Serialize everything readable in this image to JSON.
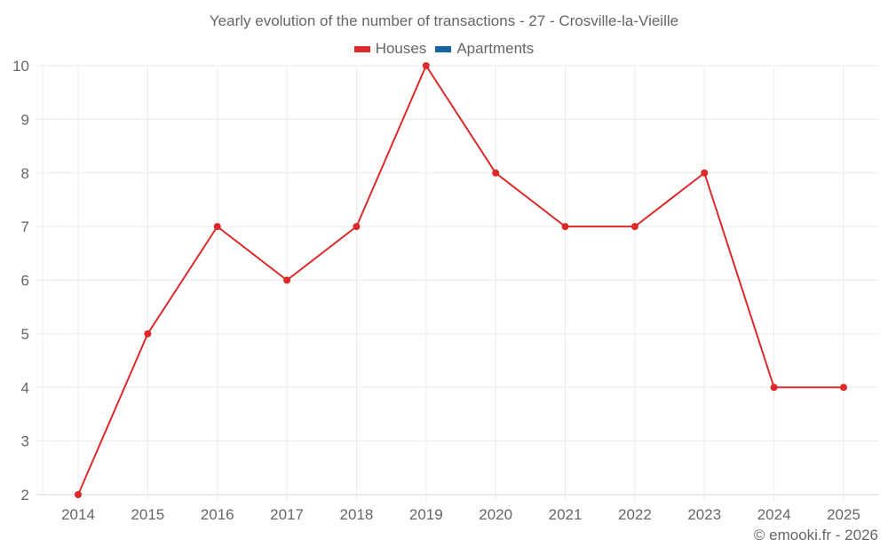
{
  "title": "Yearly evolution of the number of transactions - 27 - Crosville-la-Vieille",
  "legend": [
    {
      "label": "Houses",
      "color": "#dc2a2a"
    },
    {
      "label": "Apartments",
      "color": "#1565a0"
    }
  ],
  "credit": "© emooki.fr - 2026",
  "chart_data": {
    "type": "line",
    "title": "Yearly evolution of the number of transactions - 27 - Crosville-la-Vieille",
    "xlabel": "",
    "ylabel": "",
    "categories": [
      "2014",
      "2015",
      "2016",
      "2017",
      "2018",
      "2019",
      "2020",
      "2021",
      "2022",
      "2023",
      "2024",
      "2025"
    ],
    "series": [
      {
        "name": "Houses",
        "color": "#dc2a2a",
        "values": [
          2,
          5,
          7,
          6,
          7,
          10,
          8,
          7,
          7,
          8,
          4,
          4
        ]
      },
      {
        "name": "Apartments",
        "color": "#1565a0",
        "values": []
      }
    ],
    "ylim": [
      2,
      10
    ],
    "yticks": [
      2,
      3,
      4,
      5,
      6,
      7,
      8,
      9,
      10
    ],
    "grid": true,
    "legend_position": "top"
  }
}
